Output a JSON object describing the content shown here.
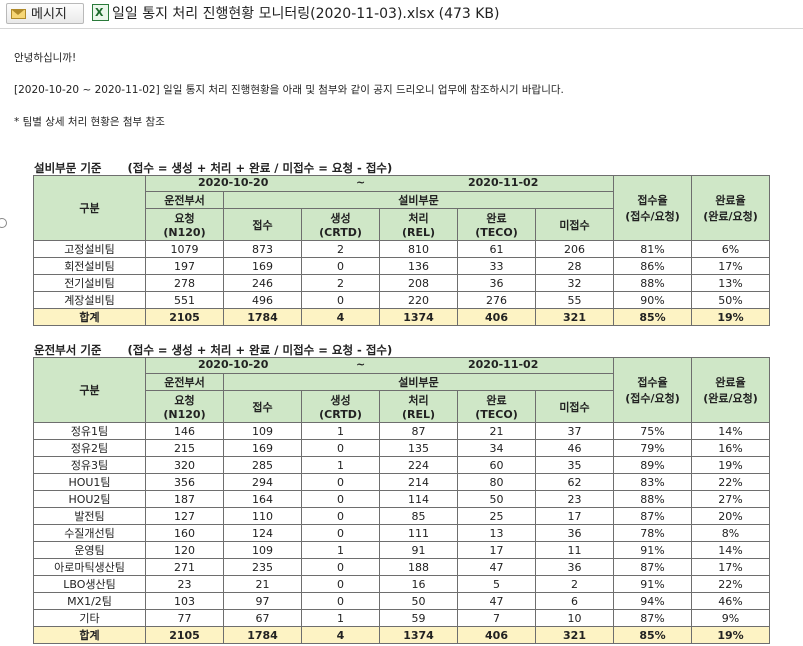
{
  "header": {
    "message_button": "메시지",
    "attachment_name": "일일 통지 처리 진행현황 모니터링(2020-11-03).xlsx",
    "attachment_size": "(473 KB)"
  },
  "body": {
    "greeting": "안녕하십니까!",
    "intro": "[2020-10-20 ~ 2020-11-02] 일일 통지 처리 진행현황을 아래 및 첨부와 같이 공지 드리오니 업무에 참조하시기 바랍니다.",
    "note": "* 팀별 상세 처리 현황은 첨부 참조"
  },
  "headers": {
    "gubun": "구분",
    "date_from": "2020-10-20",
    "date_sep": "~",
    "date_to": "2020-11-02",
    "group_ops": "운전부서",
    "group_equip": "설비부문",
    "req": "요청",
    "req_code": "(N120)",
    "accept": "접수",
    "create": "생성",
    "create_code": "(CRTD)",
    "process": "처리",
    "process_code": "(REL)",
    "complete": "완료",
    "complete_code": "(TECO)",
    "unaccepted": "미접수",
    "accept_rate": "접수율",
    "accept_rate_formula": "(접수/요청)",
    "complete_rate": "완료율",
    "complete_rate_formula": "(완료/요청)"
  },
  "table1": {
    "title": "설비부문 기준",
    "formula": "(접수 = 생성 + 처리 + 완료   /   미접수 = 요청 - 접수)",
    "rows": [
      [
        "고정설비팀",
        "1079",
        "873",
        "2",
        "810",
        "61",
        "206",
        "81%",
        "6%"
      ],
      [
        "회전설비팀",
        "197",
        "169",
        "0",
        "136",
        "33",
        "28",
        "86%",
        "17%"
      ],
      [
        "전기설비팀",
        "278",
        "246",
        "2",
        "208",
        "36",
        "32",
        "88%",
        "13%"
      ],
      [
        "계장설비팀",
        "551",
        "496",
        "0",
        "220",
        "276",
        "55",
        "90%",
        "50%"
      ]
    ],
    "total": [
      "합계",
      "2105",
      "1784",
      "4",
      "1374",
      "406",
      "321",
      "85%",
      "19%"
    ]
  },
  "table2": {
    "title": "운전부서 기준",
    "formula": "(접수 = 생성 + 처리 + 완료   /   미접수 = 요청 - 접수)",
    "rows": [
      [
        "정유1팀",
        "146",
        "109",
        "1",
        "87",
        "21",
        "37",
        "75%",
        "14%"
      ],
      [
        "정유2팀",
        "215",
        "169",
        "0",
        "135",
        "34",
        "46",
        "79%",
        "16%"
      ],
      [
        "정유3팀",
        "320",
        "285",
        "1",
        "224",
        "60",
        "35",
        "89%",
        "19%"
      ],
      [
        "HOU1팀",
        "356",
        "294",
        "0",
        "214",
        "80",
        "62",
        "83%",
        "22%"
      ],
      [
        "HOU2팀",
        "187",
        "164",
        "0",
        "114",
        "50",
        "23",
        "88%",
        "27%"
      ],
      [
        "발전팀",
        "127",
        "110",
        "0",
        "85",
        "25",
        "17",
        "87%",
        "20%"
      ],
      [
        "수질개선팀",
        "160",
        "124",
        "0",
        "111",
        "13",
        "36",
        "78%",
        "8%"
      ],
      [
        "운영팀",
        "120",
        "109",
        "1",
        "91",
        "17",
        "11",
        "91%",
        "14%"
      ],
      [
        "아로마틱생산팀",
        "271",
        "235",
        "0",
        "188",
        "47",
        "36",
        "87%",
        "17%"
      ],
      [
        "LBO생산팀",
        "23",
        "21",
        "0",
        "16",
        "5",
        "2",
        "91%",
        "22%"
      ],
      [
        "MX1/2팀",
        "103",
        "97",
        "0",
        "50",
        "47",
        "6",
        "94%",
        "46%"
      ],
      [
        "기타",
        "77",
        "67",
        "1",
        "59",
        "7",
        "10",
        "87%",
        "9%"
      ]
    ],
    "total": [
      "합계",
      "2105",
      "1784",
      "4",
      "1374",
      "406",
      "321",
      "85%",
      "19%"
    ]
  }
}
